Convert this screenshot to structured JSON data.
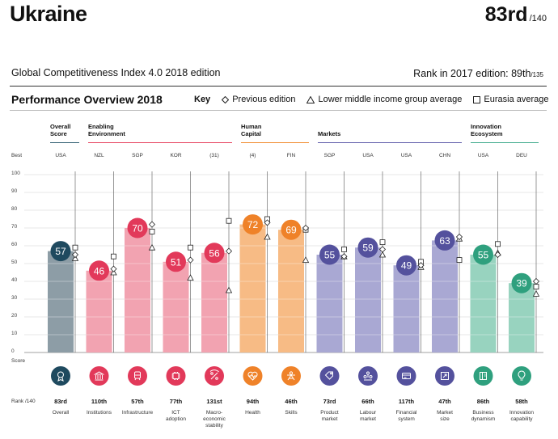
{
  "header": {
    "country": "Ukraine",
    "rank": "83rd",
    "rank_of": "/140",
    "edition": "Global Competitiveness Index 4.0 2018 edition",
    "rank2017_text": "Rank in 2017 edition: 89th",
    "rank2017_of": "/135"
  },
  "overview": {
    "title": "Performance Overview 2018",
    "key_label": "Key",
    "key_previous": "Previous edition",
    "key_income": "Lower middle income group average",
    "key_region": "Eurasia average"
  },
  "labels": {
    "best": "Best",
    "score": "Score",
    "rank": "Rank /140"
  },
  "groups": [
    {
      "name_l1": "Overall",
      "name_l2": "Score",
      "color": "#2b5a6e"
    },
    {
      "name_l1": "Enabling",
      "name_l2": "Environment",
      "color": "#e63e5c"
    },
    {
      "name_l1": "Human",
      "name_l2": "Capital",
      "color": "#f08a2b"
    },
    {
      "name_l1": "Markets",
      "name_l2": "",
      "color": "#5c59a8"
    },
    {
      "name_l1": "Innovation",
      "name_l2": "Ecosystem",
      "color": "#3aa88a"
    }
  ],
  "colors": {
    "overall_circle": "#1f4a5f",
    "overall_bar": "#8d9da6",
    "enabling_circle": "#e2395a",
    "enabling_bar": "#f2a3b1",
    "human_circle": "#ef8229",
    "human_bar": "#f7bb85",
    "markets_circle": "#54519d",
    "markets_bar": "#a9a8d3",
    "innovation_circle": "#2fa07e",
    "innovation_bar": "#98d3bf"
  },
  "chart_data": {
    "type": "bar",
    "ylim": [
      0,
      100
    ],
    "yticks": [
      "0",
      "10",
      "20",
      "30",
      "40",
      "50",
      "60",
      "70",
      "80",
      "90",
      "100"
    ],
    "categories": [
      "Overall",
      "Institutions",
      "Infrastructure",
      "ICT adoption",
      "Macro- economic stability",
      "Health",
      "Skills",
      "Product market",
      "Labour market",
      "Financial system",
      "Market size",
      "Business dynamism",
      "Innovation capability"
    ],
    "pillar_lines": [
      [
        "Overall"
      ],
      [
        "Institutions"
      ],
      [
        "Infrastructure"
      ],
      [
        "ICT",
        "adoption"
      ],
      [
        "Macro-",
        "economic",
        "stability"
      ],
      [
        "Health"
      ],
      [
        "Skills"
      ],
      [
        "Product",
        "market"
      ],
      [
        "Labour",
        "market"
      ],
      [
        "Financial",
        "system"
      ],
      [
        "Market",
        "size"
      ],
      [
        "Business",
        "dynamism"
      ],
      [
        "Innovation",
        "capability"
      ]
    ],
    "icons": [
      "medal-icon",
      "institution-icon",
      "train-icon",
      "chip-icon",
      "percent-icon",
      "heart-pulse-icon",
      "person-icon",
      "tag-icon",
      "workers-icon",
      "card-icon",
      "expand-icon",
      "business-icon",
      "lightbulb-icon"
    ],
    "group_index": [
      0,
      1,
      1,
      1,
      1,
      2,
      2,
      3,
      3,
      3,
      3,
      4,
      4
    ],
    "benchmark": [
      "USA",
      "NZL",
      "SGP",
      "KOR",
      "(31)",
      "(4)",
      "FIN",
      "SGP",
      "USA",
      "USA",
      "CHN",
      "USA",
      "DEU"
    ],
    "series": [
      {
        "name": "Score",
        "values": [
          57,
          46,
          70,
          51,
          56,
          72,
          69,
          55,
          59,
          49,
          63,
          55,
          39
        ]
      },
      {
        "name": "Previous edition",
        "values": [
          55,
          47,
          72,
          52,
          57,
          73,
          70,
          54,
          58,
          49,
          65,
          55,
          40
        ]
      },
      {
        "name": "Lower middle income group average",
        "values": [
          53,
          45,
          59,
          42,
          35,
          65,
          52,
          54,
          55,
          48,
          64,
          56,
          33
        ]
      },
      {
        "name": "Eurasia average",
        "values": [
          59,
          54,
          68,
          59,
          74,
          75,
          69,
          58,
          62,
          51,
          52,
          61,
          37
        ]
      }
    ],
    "ranks": [
      "83rd",
      "110th",
      "57th",
      "77th",
      "131st",
      "94th",
      "46th",
      "73rd",
      "66th",
      "117th",
      "47th",
      "86th",
      "58th"
    ]
  }
}
